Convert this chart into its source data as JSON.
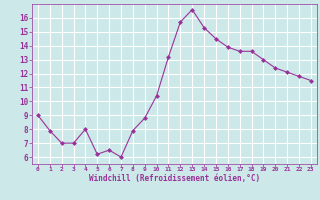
{
  "x": [
    0,
    1,
    2,
    3,
    4,
    5,
    6,
    7,
    8,
    9,
    10,
    11,
    12,
    13,
    14,
    15,
    16,
    17,
    18,
    19,
    20,
    21,
    22,
    23
  ],
  "y": [
    9.0,
    7.9,
    7.0,
    7.0,
    8.0,
    6.2,
    6.5,
    6.0,
    7.9,
    8.8,
    10.4,
    13.2,
    15.7,
    16.6,
    15.3,
    14.5,
    13.9,
    13.6,
    13.6,
    13.0,
    12.4,
    12.1,
    11.8,
    11.5
  ],
  "line_color": "#993399",
  "marker": "D",
  "marker_size": 2.0,
  "bg_color": "#cce8e8",
  "grid_color": "#ffffff",
  "xlabel": "Windchill (Refroidissement éolien,°C)",
  "xlabel_color": "#993399",
  "tick_color": "#993399",
  "label_color": "#993399",
  "xlim": [
    -0.5,
    23.5
  ],
  "ylim": [
    5.5,
    17.0
  ],
  "yticks": [
    6,
    7,
    8,
    9,
    10,
    11,
    12,
    13,
    14,
    15,
    16
  ],
  "xticks": [
    0,
    1,
    2,
    3,
    4,
    5,
    6,
    7,
    8,
    9,
    10,
    11,
    12,
    13,
    14,
    15,
    16,
    17,
    18,
    19,
    20,
    21,
    22,
    23
  ]
}
